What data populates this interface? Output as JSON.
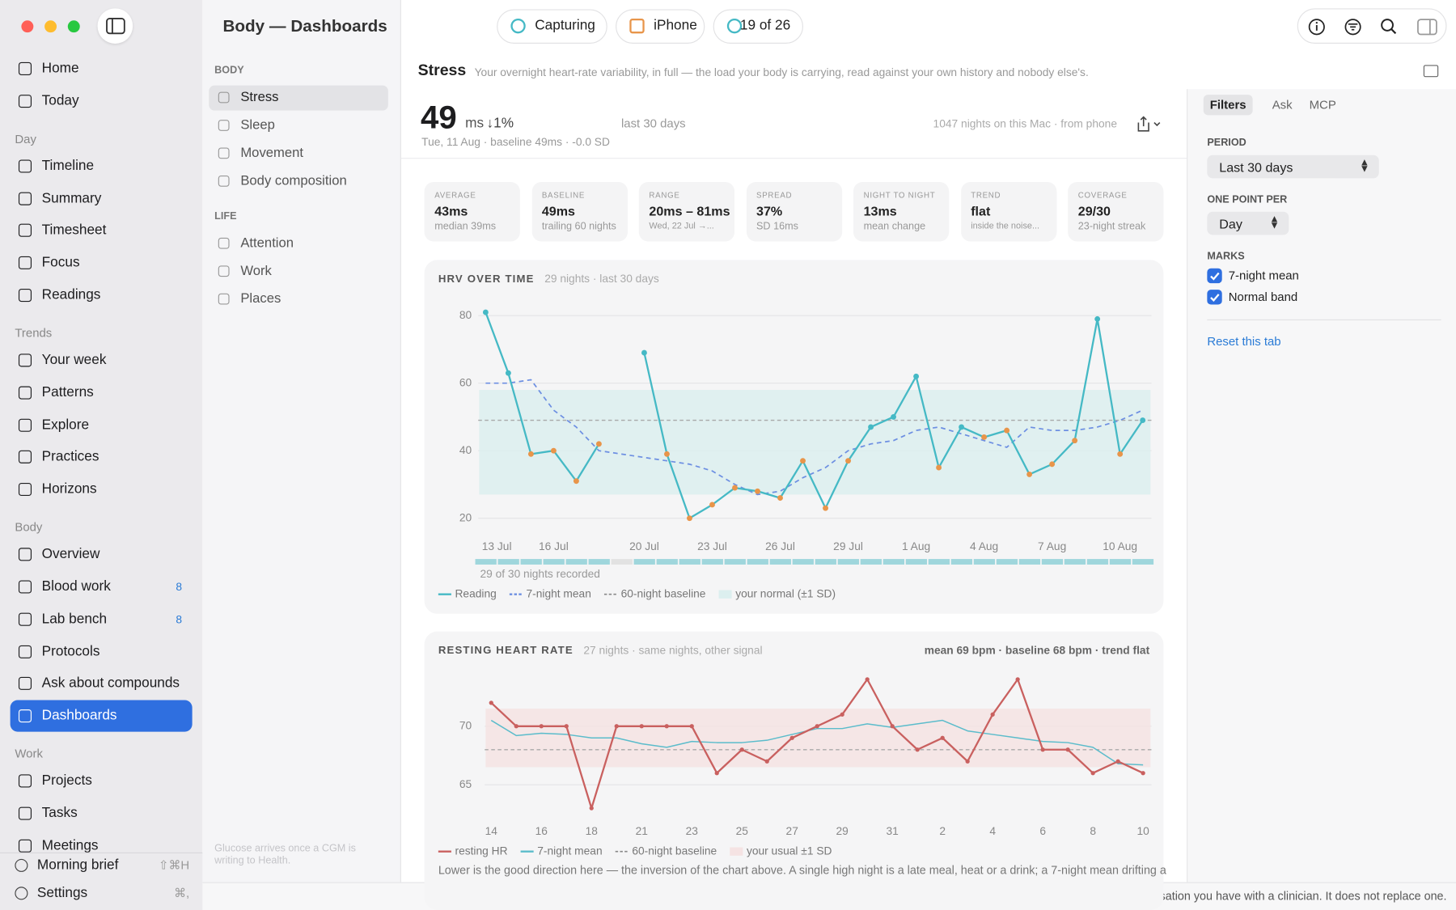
{
  "sidebar": {
    "top_items": [
      {
        "label": "Home"
      },
      {
        "label": "Today"
      }
    ],
    "sections": [
      {
        "heading": "Day",
        "items": [
          {
            "label": "Timeline"
          },
          {
            "label": "Summary"
          },
          {
            "label": "Timesheet"
          },
          {
            "label": "Focus"
          },
          {
            "label": "Readings"
          }
        ]
      },
      {
        "heading": "Trends",
        "items": [
          {
            "label": "Your week"
          },
          {
            "label": "Patterns"
          },
          {
            "label": "Explore"
          },
          {
            "label": "Practices"
          },
          {
            "label": "Horizons"
          }
        ]
      },
      {
        "heading": "Body",
        "items": [
          {
            "label": "Overview"
          },
          {
            "label": "Blood work",
            "badge": 8
          },
          {
            "label": "Lab bench",
            "badge": 8
          },
          {
            "label": "Protocols"
          },
          {
            "label": "Ask about compounds"
          },
          {
            "label": "Dashboards",
            "selected": true
          }
        ]
      },
      {
        "heading": "Work",
        "items": [
          {
            "label": "Projects"
          },
          {
            "label": "Tasks"
          },
          {
            "label": "Meetings"
          }
        ]
      }
    ],
    "footer": [
      {
        "label": "Morning brief",
        "shortcut": "⇧⌘H"
      },
      {
        "label": "Settings",
        "shortcut": "⌘,"
      }
    ]
  },
  "subnav": {
    "title": "Body — Dashboards",
    "groups": [
      {
        "heading": "BODY",
        "items": [
          {
            "label": "Stress",
            "selected": true
          },
          {
            "label": "Sleep"
          },
          {
            "label": "Movement"
          },
          {
            "label": "Body composition"
          }
        ]
      },
      {
        "heading": "LIFE",
        "items": [
          {
            "label": "Attention"
          },
          {
            "label": "Work"
          },
          {
            "label": "Places"
          }
        ]
      }
    ],
    "note": "Glucose arrives once a CGM is writing to Health."
  },
  "toolbar": {
    "pills": [
      "Capturing",
      "iPhone",
      "19 of 26"
    ]
  },
  "page": {
    "title": "Stress",
    "subtitle": "Your overnight heart-rate variability, in full — the load your body is carrying, read against your own history and nobody else's."
  },
  "summary": {
    "value": 49,
    "unit": "ms",
    "change": "↓1%",
    "period": "last 30 days",
    "detail": "Tue, 11 Aug · baseline 49ms · -0.0 SD",
    "source": "1047 nights on this Mac · from phone"
  },
  "stats": [
    {
      "label": "AVERAGE",
      "value": "43ms",
      "sub": "median 39ms"
    },
    {
      "label": "BASELINE",
      "value": "49ms",
      "sub": "trailing 60 nights"
    },
    {
      "label": "RANGE",
      "value": "20ms – 81ms",
      "sub": "Wed, 22 Jul →..."
    },
    {
      "label": "SPREAD",
      "value": "37%",
      "sub": "SD 16ms"
    },
    {
      "label": "NIGHT TO NIGHT",
      "value": "13ms",
      "sub": "mean change"
    },
    {
      "label": "TREND",
      "value": "flat",
      "sub": "inside the noise..."
    },
    {
      "label": "COVERAGE",
      "value": "29/30",
      "sub": "23-night streak"
    }
  ],
  "chart_data": [
    {
      "type": "line",
      "title": "HRV OVER TIME",
      "subtitle": "29 nights · last 30 days",
      "categories": [
        "13 Jul",
        null,
        null,
        "16 Jul",
        null,
        null,
        null,
        "20 Jul",
        null,
        null,
        "23 Jul",
        null,
        null,
        "26 Jul",
        null,
        null,
        "29 Jul",
        null,
        null,
        "1 Aug",
        null,
        null,
        "4 Aug",
        null,
        null,
        "7 Aug",
        null,
        null,
        "10 Aug",
        null
      ],
      "series": [
        {
          "name": "Reading",
          "color": "#45b9c5",
          "values": [
            81,
            63,
            39,
            40,
            31,
            42,
            null,
            69,
            39,
            20,
            24,
            29,
            28,
            26,
            37,
            23,
            37,
            47,
            50,
            62,
            35,
            47,
            44,
            46,
            33,
            36,
            43,
            79,
            39,
            49
          ],
          "marker_colors": [
            "#45b9c5",
            "#45b9c5",
            "#e8954a",
            "#e8954a",
            "#e8954a",
            "#e8954a",
            null,
            "#45b9c5",
            "#e8954a",
            "#e8954a",
            "#e8954a",
            "#e8954a",
            "#e8954a",
            "#e8954a",
            "#e8954a",
            "#e8954a",
            "#e8954a",
            "#45b9c5",
            "#45b9c5",
            "#45b9c5",
            "#e8954a",
            "#45b9c5",
            "#e8954a",
            "#e8954a",
            "#e8954a",
            "#e8954a",
            "#e8954a",
            "#45b9c5",
            "#e8954a",
            "#45b9c5"
          ]
        },
        {
          "name": "7-night mean",
          "color": "#6d8fe2",
          "dashed": true,
          "values": [
            60,
            60,
            61,
            52,
            47,
            40,
            39,
            38,
            37,
            36,
            34,
            30,
            27,
            28,
            32,
            35,
            40,
            42,
            43,
            46,
            47,
            45,
            43,
            41,
            47,
            46,
            46,
            47,
            49,
            52
          ]
        }
      ],
      "reference_lines": [
        {
          "name": "60-night baseline",
          "value": 49,
          "color": "#a9a9a9"
        }
      ],
      "bands": [
        {
          "name": "your normal (±1 SD)",
          "range": [
            27,
            58
          ],
          "color": "#dcefef"
        }
      ],
      "ylim": [
        17,
        83
      ],
      "yticks": [
        20,
        40,
        60,
        80
      ],
      "grid": true,
      "coverage_label": "29 of 30 nights recorded",
      "coverage_colors": [
        "#9fd6dc",
        "#e2e2e2"
      ]
    },
    {
      "type": "line",
      "title": "RESTING HEART RATE",
      "subtitle": "27 nights · same nights, other signal",
      "stats_label": "mean 69 bpm · baseline 68 bpm · trend flat",
      "categories": [
        "14",
        null,
        "16",
        null,
        "18",
        null,
        "21",
        null,
        "23",
        null,
        "25",
        null,
        "27",
        null,
        "29",
        null,
        "31",
        null,
        "2",
        null,
        "4",
        null,
        "6",
        null,
        "8",
        null,
        "10"
      ],
      "series": [
        {
          "name": "resting HR",
          "color": "#c9605f",
          "markers": true,
          "values": [
            72,
            70,
            70,
            70,
            63,
            70,
            70,
            70,
            70,
            66,
            68,
            67,
            69,
            70,
            71,
            74,
            70,
            68,
            69,
            67,
            71,
            74,
            68,
            68,
            66,
            67,
            66
          ]
        },
        {
          "name": "7-night mean",
          "color": "#5bbccb",
          "values": [
            70.5,
            69.2,
            69.4,
            69.3,
            69,
            69,
            68.5,
            68.2,
            68.7,
            68.6,
            68.6,
            68.8,
            69.3,
            69.8,
            69.8,
            70.2,
            69.9,
            70.2,
            70.5,
            69.6,
            69.3,
            69,
            68.7,
            68.6,
            68.2,
            66.8,
            66.7
          ]
        }
      ],
      "reference_lines": [
        {
          "name": "60-night baseline",
          "value": 68,
          "color": "#a9a9a9"
        }
      ],
      "bands": [
        {
          "name": "your usual ±1 SD",
          "range": [
            66.5,
            71.5
          ],
          "color": "#f5e3e3"
        }
      ],
      "ylim": [
        62,
        75
      ],
      "yticks": [
        65,
        70
      ],
      "grid": true,
      "caption": "Lower is the good direction here — the inversion of the chart above. A single high night is a late meal, heat or a drink; a 7-night mean drifting a"
    }
  ],
  "filters": {
    "tabs": [
      {
        "label": "Filters",
        "selected": true
      },
      {
        "label": "Ask"
      },
      {
        "label": "MCP"
      }
    ],
    "period_label": "PERIOD",
    "period": "Last 30 days",
    "point_label": "ONE POINT PER",
    "point": "Day",
    "marks_label": "MARKS",
    "marks": [
      {
        "label": "7-night mean",
        "checked": true
      },
      {
        "label": "Normal band",
        "checked": true
      }
    ],
    "reset": "Reset this tab"
  },
  "footer": "This informs the conversation you have with a clinician. It does not replace one."
}
